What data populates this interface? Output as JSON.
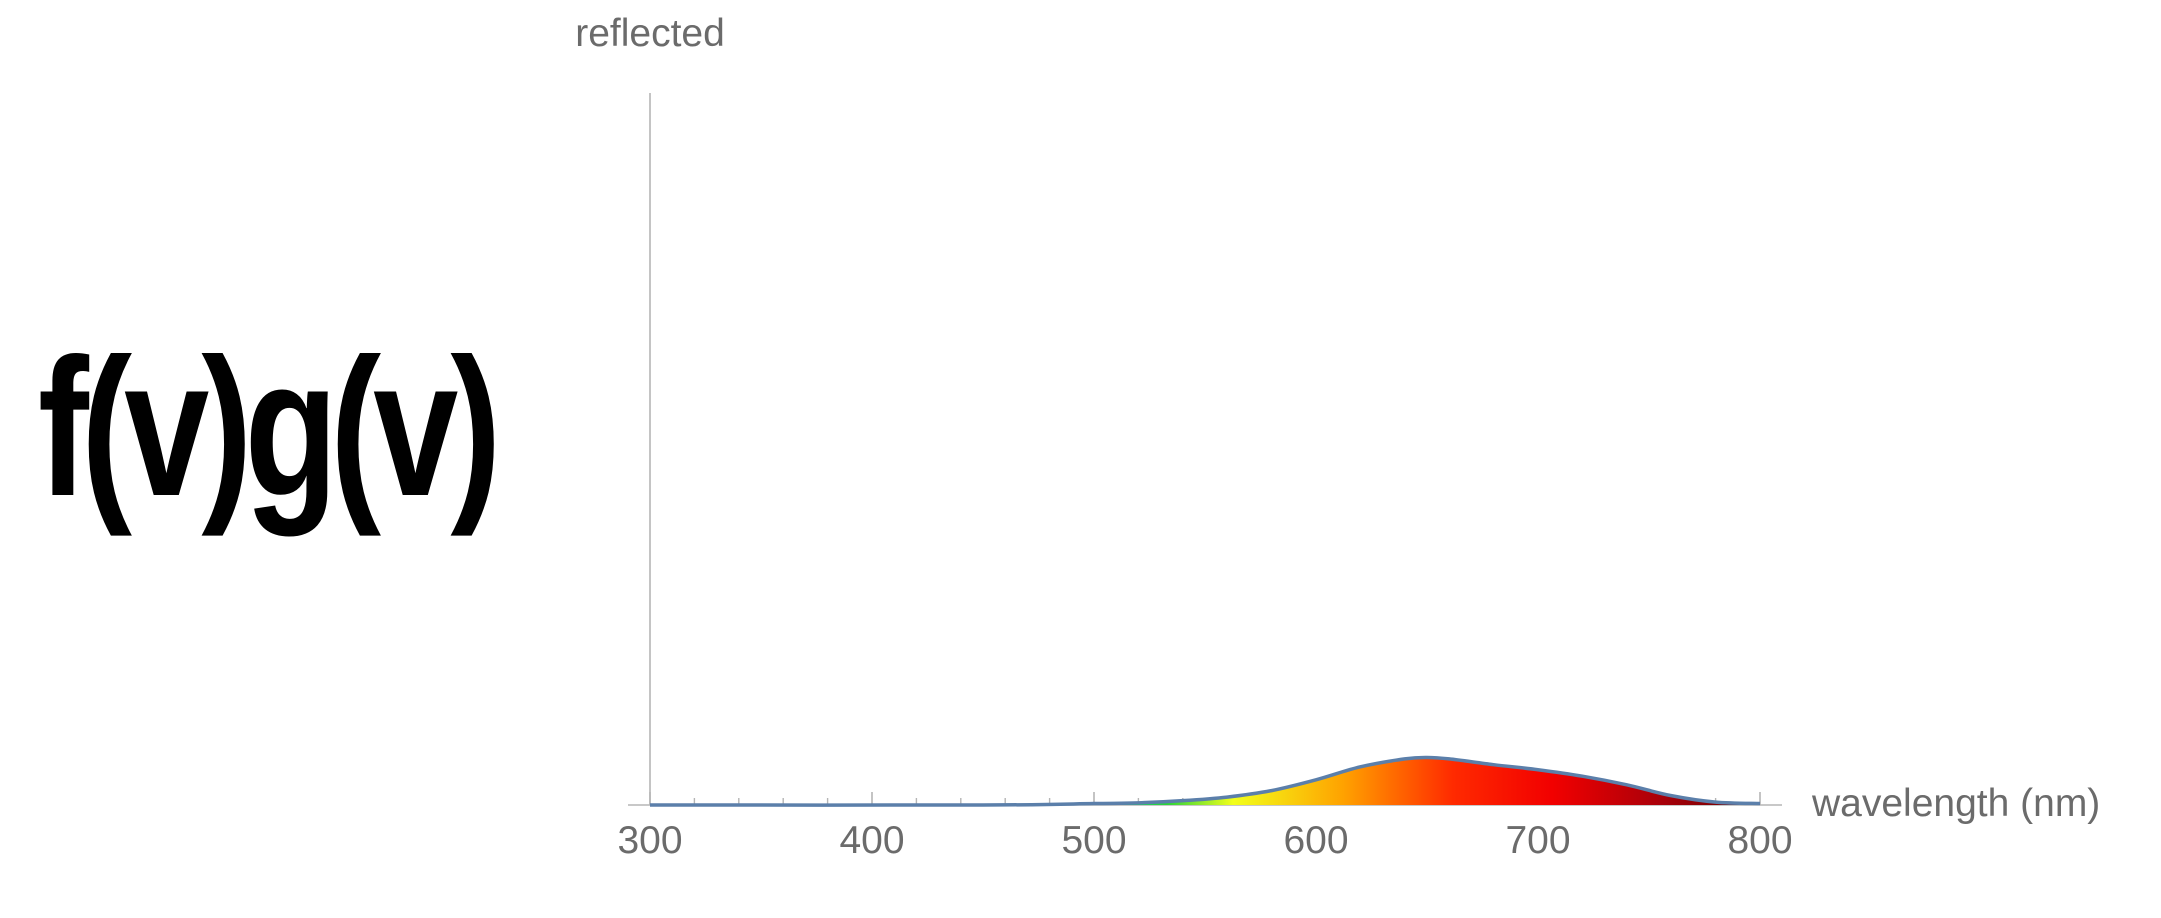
{
  "formula": "f(v)g(v)",
  "chart_data": {
    "type": "area",
    "ylabel": "reflected",
    "xlabel": "wavelength (nm)",
    "xlim": [
      300,
      800
    ],
    "ylim": [
      0,
      1
    ],
    "xticks": [
      300,
      400,
      500,
      600,
      700,
      800
    ],
    "xtick_labels": [
      "300",
      "400",
      "500",
      "600",
      "700",
      "800"
    ],
    "grid": false,
    "line_color": "#5b7faa",
    "series": [
      {
        "x": [
          300,
          450,
          500,
          520,
          540,
          560,
          580,
          600,
          620,
          640,
          650,
          660,
          680,
          700,
          720,
          740,
          760,
          780,
          800
        ],
        "values": [
          0.0,
          0.0,
          0.002,
          0.003,
          0.006,
          0.011,
          0.02,
          0.035,
          0.053,
          0.064,
          0.066,
          0.064,
          0.056,
          0.049,
          0.04,
          0.028,
          0.013,
          0.004,
          0.002
        ]
      }
    ]
  }
}
